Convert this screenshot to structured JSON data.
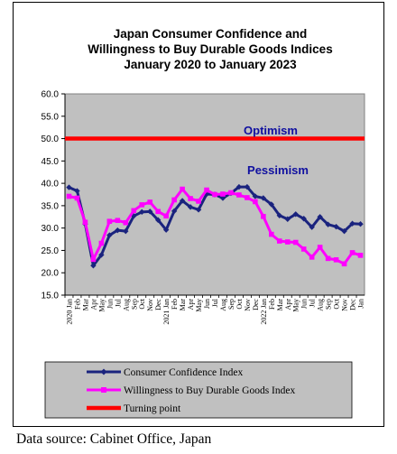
{
  "chart_data": {
    "type": "line",
    "title": [
      "Japan Consumer Confidence and",
      "Willingness to Buy Durable Goods Indices",
      "January 2020 to January 2023"
    ],
    "ylim": [
      15,
      60
    ],
    "yticks": [
      "60.0",
      "55.0",
      "50.0",
      "45.0",
      "40.0",
      "35.0",
      "30.0",
      "25.0",
      "20.0",
      "15.0"
    ],
    "x": [
      "2020 Jan",
      "Feb",
      "Mar",
      "Apr",
      "May",
      "Jun",
      "Jul",
      "Aug",
      "Sep",
      "Oct",
      "Nov",
      "Dec",
      "2021 Jan",
      "Feb",
      "Mar",
      "Apr",
      "May",
      "Jun",
      "Jul",
      "Aug",
      "Sep",
      "Oct",
      "Nov",
      "Dec",
      "2022 Jan",
      "Feb",
      "Mar",
      "Apr",
      "May",
      "Jun",
      "Jul",
      "Aug",
      "Sep",
      "Oct",
      "Nov",
      "Dec",
      "Jan"
    ],
    "series": [
      {
        "name": "Consumer Confidence Index",
        "color": "#1a237e",
        "values": [
          39.1,
          38.3,
          30.9,
          21.6,
          24.0,
          28.4,
          29.5,
          29.3,
          32.7,
          33.6,
          33.7,
          31.8,
          29.6,
          33.8,
          36.1,
          34.7,
          34.1,
          37.6,
          37.5,
          36.7,
          37.8,
          39.2,
          39.2,
          37.1,
          36.7,
          35.3,
          32.8,
          32.0,
          33.1,
          32.1,
          30.2,
          32.5,
          30.8,
          30.3,
          29.3,
          31.0,
          30.9
        ]
      },
      {
        "name": "Willingness to Buy Durable Goods Index",
        "color": "#ff00ff",
        "values": [
          37.1,
          36.7,
          31.3,
          23.0,
          26.6,
          31.5,
          31.7,
          31.2,
          33.9,
          35.2,
          35.8,
          33.7,
          32.7,
          36.3,
          38.7,
          36.6,
          36.0,
          38.5,
          37.5,
          37.6,
          37.9,
          37.4,
          36.8,
          35.9,
          32.6,
          28.6,
          27.1,
          26.9,
          26.8,
          25.3,
          23.5,
          25.7,
          23.2,
          22.9,
          22.0,
          24.5,
          23.9
        ]
      }
    ],
    "reference_line": {
      "name": "Turning point",
      "value": 50,
      "color": "#ff0000"
    },
    "annotations": {
      "above": "Optimism",
      "below": "Pessimism"
    },
    "grid": false,
    "legend": "bottom"
  },
  "source": "Data source: Cabinet Office, Japan"
}
